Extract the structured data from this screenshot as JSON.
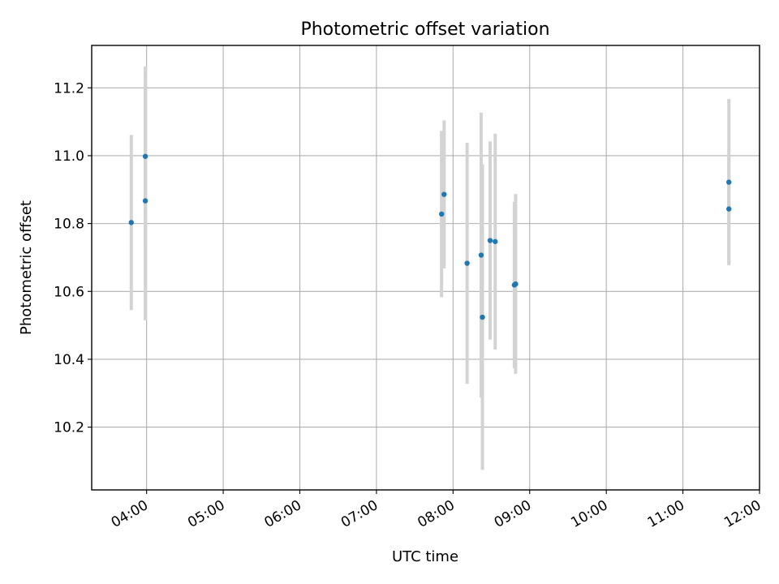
{
  "chart_data": {
    "type": "scatter",
    "title": "Photometric offset variation",
    "xlabel": "UTC time",
    "ylabel": "Photometric offset",
    "x_unit": "UTC time of day",
    "xlim": [
      "03:17",
      "12:00"
    ],
    "ylim": [
      10.015,
      11.325
    ],
    "x_ticks": [
      "04:00",
      "05:00",
      "06:00",
      "07:00",
      "08:00",
      "09:00",
      "10:00",
      "11:00",
      "12:00"
    ],
    "y_ticks": [
      "10.2",
      "10.4",
      "10.6",
      "10.8",
      "11.0",
      "11.2"
    ],
    "grid": true,
    "marker_color": "#1f77b4",
    "errorbar_color": "#d3d3d3",
    "points": [
      {
        "x": "03:48",
        "y": 10.803,
        "yerr": 0.258
      },
      {
        "x": "03:59",
        "y": 10.867,
        "yerr": 0.352
      },
      {
        "x": "03:59",
        "y": 10.998,
        "yerr": 0.265
      },
      {
        "x": "07:51",
        "y": 10.828,
        "yerr": 0.245
      },
      {
        "x": "07:53",
        "y": 10.886,
        "yerr": 0.218
      },
      {
        "x": "08:11",
        "y": 10.683,
        "yerr": 0.355
      },
      {
        "x": "08:22",
        "y": 10.707,
        "yerr": 0.42
      },
      {
        "x": "08:23",
        "y": 10.524,
        "yerr": 0.45
      },
      {
        "x": "08:29",
        "y": 10.75,
        "yerr": 0.292
      },
      {
        "x": "08:33",
        "y": 10.747,
        "yerr": 0.318
      },
      {
        "x": "08:48",
        "y": 10.619,
        "yerr": 0.245
      },
      {
        "x": "08:49",
        "y": 10.622,
        "yerr": 0.265
      },
      {
        "x": "11:36",
        "y": 10.843,
        "yerr": 0.16
      },
      {
        "x": "11:36",
        "y": 10.922,
        "yerr": 0.245
      }
    ]
  }
}
